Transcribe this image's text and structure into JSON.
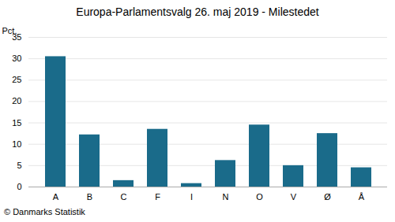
{
  "chart_data": {
    "type": "bar",
    "title": "Europa-Parlamentsvalg 26. maj 2019 - Milestedet",
    "categories": [
      "A",
      "B",
      "C",
      "F",
      "I",
      "N",
      "O",
      "V",
      "Ø",
      "Å"
    ],
    "values": [
      30.5,
      12.2,
      1.5,
      13.5,
      0.8,
      6.2,
      14.5,
      5.0,
      12.5,
      4.5
    ],
    "color": "#1a6b8a",
    "ylabel": "Pct.",
    "ylim": [
      0,
      35
    ],
    "yticks": [
      0,
      5,
      10,
      15,
      20,
      25,
      30,
      35
    ],
    "grid": true,
    "caption": "© Danmarks Statistik"
  }
}
